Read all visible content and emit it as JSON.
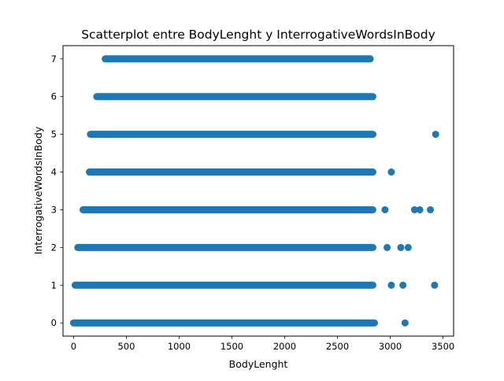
{
  "chart_data": {
    "type": "scatter",
    "title": "Scatterplot entre BodyLenght y InterrogativeWordsInBody",
    "xlabel": "BodyLenght",
    "ylabel": "InterrogativeWordsInBody",
    "xlim": [
      -100,
      3600
    ],
    "ylim": [
      -0.35,
      7.35
    ],
    "x_ticks": [
      0,
      500,
      1000,
      1500,
      2000,
      2500,
      3000,
      3500
    ],
    "y_ticks": [
      0,
      1,
      2,
      3,
      4,
      5,
      6,
      7
    ],
    "grid": false,
    "legend": "none",
    "marker_color": "#1f77b4",
    "bands": [
      {
        "y": 0,
        "x_min": 0,
        "x_max": 2850
      },
      {
        "y": 1,
        "x_min": 15,
        "x_max": 2835
      },
      {
        "y": 2,
        "x_min": 40,
        "x_max": 2835
      },
      {
        "y": 3,
        "x_min": 90,
        "x_max": 2835
      },
      {
        "y": 4,
        "x_min": 150,
        "x_max": 2835
      },
      {
        "y": 5,
        "x_min": 160,
        "x_max": 2835
      },
      {
        "y": 6,
        "x_min": 220,
        "x_max": 2835
      },
      {
        "y": 7,
        "x_min": 300,
        "x_max": 2810
      }
    ],
    "outliers": [
      {
        "x": 3140,
        "y": 0
      },
      {
        "x": 3010,
        "y": 1
      },
      {
        "x": 3120,
        "y": 1
      },
      {
        "x": 3420,
        "y": 1
      },
      {
        "x": 2970,
        "y": 2
      },
      {
        "x": 3100,
        "y": 2
      },
      {
        "x": 3170,
        "y": 2
      },
      {
        "x": 2950,
        "y": 3
      },
      {
        "x": 3230,
        "y": 3
      },
      {
        "x": 3280,
        "y": 3
      },
      {
        "x": 3380,
        "y": 3
      },
      {
        "x": 3010,
        "y": 4
      },
      {
        "x": 3430,
        "y": 5
      }
    ]
  }
}
